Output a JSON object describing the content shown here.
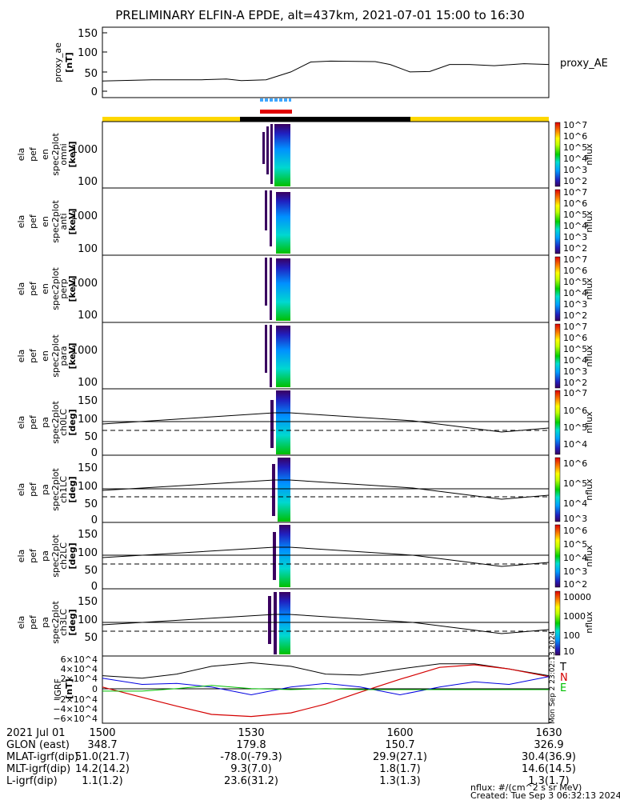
{
  "title": "PRELIMINARY ELFIN-A EPDE, alt=437km, 2021-07-01 15:00 to 16:30",
  "proxy_ae": {
    "ylabel_lines": [
      "proxy_ae",
      "[nT]"
    ],
    "yticks": [
      "150",
      "100",
      "50",
      "0"
    ],
    "legend": "proxy_AE"
  },
  "spectrogram_panels": [
    {
      "ylabel_lines": [
        "ela",
        "pef",
        "en",
        "spec2plot",
        "omni",
        "[keV]"
      ],
      "yticks": [
        "1000",
        "100"
      ],
      "cbar_ticks": [
        "10^7",
        "10^6",
        "10^5",
        "10^4",
        "10^3",
        "10^2"
      ],
      "cbar_label": "nflux"
    },
    {
      "ylabel_lines": [
        "ela",
        "pef",
        "en",
        "spec2plot",
        "anti",
        "[keV]"
      ],
      "yticks": [
        "1000",
        "100"
      ],
      "cbar_ticks": [
        "10^7",
        "10^6",
        "10^5",
        "10^4",
        "10^3",
        "10^2"
      ],
      "cbar_label": "nflux"
    },
    {
      "ylabel_lines": [
        "ela",
        "pef",
        "en",
        "spec2plot",
        "perp",
        "[keV]"
      ],
      "yticks": [
        "1000",
        "100"
      ],
      "cbar_ticks": [
        "10^7",
        "10^6",
        "10^5",
        "10^4",
        "10^3",
        "10^2"
      ],
      "cbar_label": "nflux"
    },
    {
      "ylabel_lines": [
        "ela",
        "pef",
        "en",
        "spec2plot",
        "para",
        "[keV]"
      ],
      "yticks": [
        "1000",
        "100"
      ],
      "cbar_ticks": [
        "10^7",
        "10^6",
        "10^5",
        "10^4",
        "10^3",
        "10^2"
      ],
      "cbar_label": "nflux"
    }
  ],
  "pitch_panels": [
    {
      "ylabel_lines": [
        "ela",
        "pef",
        "pa",
        "spec2plot",
        "ch0LC",
        "[deg]"
      ],
      "yticks": [
        "150",
        "100",
        "50",
        "0"
      ],
      "cbar_ticks": [
        "10^7",
        "10^6",
        "10^5",
        "10^4"
      ],
      "cbar_label": "nflux"
    },
    {
      "ylabel_lines": [
        "ela",
        "pef",
        "pa",
        "spec2plot",
        "ch1LC",
        "[deg]"
      ],
      "yticks": [
        "150",
        "100",
        "50",
        "0"
      ],
      "cbar_ticks": [
        "10^6",
        "10^5",
        "10^4",
        "10^3"
      ],
      "cbar_label": "nflux"
    },
    {
      "ylabel_lines": [
        "ela",
        "pef",
        "pa",
        "spec2plot",
        "ch2LC",
        "[deg]"
      ],
      "yticks": [
        "150",
        "100",
        "50",
        "0"
      ],
      "cbar_ticks": [
        "10^6",
        "10^5",
        "10^4",
        "10^3",
        "10^2"
      ],
      "cbar_label": "nflux"
    },
    {
      "ylabel_lines": [
        "ela",
        "pef",
        "pa",
        "spec2plot",
        "ch3LC",
        "[deg]"
      ],
      "yticks": [
        "150",
        "100",
        "50"
      ],
      "cbar_ticks": [
        "10000",
        "1000",
        "100",
        "10"
      ],
      "cbar_label": "nflux"
    }
  ],
  "igrf": {
    "ylabel_lines": [
      "IGRF",
      "[nT]"
    ],
    "yticks": [
      "6×10^4",
      "4×10^4",
      "2×10^4",
      "0",
      "−2×10^4",
      "−4×10^4",
      "−6×10^4"
    ],
    "components": [
      {
        "label": "T",
        "color": "#000000"
      },
      {
        "label": "N",
        "color": "#d40000"
      },
      {
        "label": "E",
        "color": "#00c000"
      }
    ],
    "side_note": "Mon Sep  2 23:02:13 2024"
  },
  "colors": {
    "sunlit": "#ffd700",
    "shadow": "#000000",
    "fgm_bar": "#3ea6ff",
    "epd_bar": "#e00000",
    "green": "#00c000",
    "blue": "#0000e0",
    "red": "#d40000"
  },
  "footer": {
    "rows": [
      {
        "label": "2021 Jul 01",
        "values": [
          "1500",
          "1530",
          "1600",
          "1630"
        ]
      },
      {
        "label": "GLON (east)",
        "values": [
          "348.7",
          "179.8",
          "150.7",
          "326.9"
        ]
      },
      {
        "label": "MLAT-igrf(dip)",
        "values": [
          "51.0(21.7)",
          "-78.0(-79.3)",
          "29.9(27.1)",
          "30.4(36.9)"
        ]
      },
      {
        "label": "MLT-igrf(dip)",
        "values": [
          "14.2(14.2)",
          "9.3(7.0)",
          "1.8(1.7)",
          "14.6(14.5)"
        ]
      },
      {
        "label": "L-igrf(dip)",
        "values": [
          "1.1(1.2)",
          "23.6(31.2)",
          "1.3(1.3)",
          "1.3(1.7)"
        ]
      }
    ],
    "units_note": "nflux: #/(cm^2 s sr MeV)",
    "created": "Created: Tue Sep  3 06:32:13 2024"
  },
  "chart_data": [
    {
      "type": "line",
      "title": "PRELIMINARY ELFIN-A EPDE, alt=437km, 2021-07-01 15:00 to 16:30",
      "ylabel": "proxy_ae [nT]",
      "ylim": [
        -10,
        160
      ],
      "series": [
        {
          "name": "proxy_AE",
          "x": [
            "15:00",
            "15:10",
            "15:20",
            "15:25",
            "15:28",
            "15:33",
            "15:38",
            "15:42",
            "15:46",
            "15:55",
            "15:58",
            "16:02",
            "16:06",
            "16:10",
            "16:14",
            "16:19",
            "16:25",
            "16:30"
          ],
          "values": [
            30,
            33,
            33,
            35,
            31,
            33,
            52,
            76,
            78,
            77,
            70,
            52,
            53,
            70,
            70,
            67,
            72,
            70
          ]
        }
      ]
    },
    {
      "type": "heatmap",
      "ylabel": "ela pef en spec2plot omni [keV]",
      "y_scale": "log",
      "ylim": [
        60,
        6000
      ],
      "active_interval": [
        "15:29",
        "15:35"
      ],
      "colorbar": {
        "range": [
          100,
          10000000
        ],
        "scale": "log",
        "label": "nflux"
      }
    },
    {
      "type": "heatmap",
      "ylabel": "ela pef en spec2plot anti [keV]",
      "y_scale": "log",
      "ylim": [
        60,
        6000
      ],
      "active_interval": [
        "15:29",
        "15:35"
      ],
      "colorbar": {
        "range": [
          100,
          10000000
        ],
        "scale": "log",
        "label": "nflux"
      }
    },
    {
      "type": "heatmap",
      "ylabel": "ela pef en spec2plot perp [keV]",
      "y_scale": "log",
      "ylim": [
        60,
        6000
      ],
      "active_interval": [
        "15:29",
        "15:35"
      ],
      "colorbar": {
        "range": [
          100,
          10000000
        ],
        "scale": "log",
        "label": "nflux"
      }
    },
    {
      "type": "heatmap",
      "ylabel": "ela pef en spec2plot para [keV]",
      "y_scale": "log",
      "ylim": [
        60,
        6000
      ],
      "active_interval": [
        "15:29",
        "15:35"
      ],
      "colorbar": {
        "range": [
          100,
          10000000
        ],
        "scale": "log",
        "label": "nflux"
      }
    },
    {
      "type": "heatmap",
      "ylabel": "ela pef pa spec2plot ch0LC [deg]",
      "ylim": [
        0,
        180
      ],
      "reference_lines": {
        "x": [
          "15:00",
          "15:30",
          "15:35",
          "16:00",
          "16:25",
          "16:30"
        ],
        "solid": [
          88,
          114,
          114,
          92,
          65,
          72
        ],
        "dashed": [
          66,
          66,
          66,
          66,
          66,
          66
        ]
      },
      "colorbar": {
        "range": [
          10000,
          10000000
        ],
        "scale": "log",
        "label": "nflux"
      }
    },
    {
      "type": "heatmap",
      "ylabel": "ela pef pa spec2plot ch1LC [deg]",
      "ylim": [
        0,
        180
      ],
      "colorbar": {
        "range": [
          1000,
          1000000
        ],
        "scale": "log",
        "label": "nflux"
      }
    },
    {
      "type": "heatmap",
      "ylabel": "ela pef pa spec2plot ch2LC [deg]",
      "ylim": [
        0,
        180
      ],
      "colorbar": {
        "range": [
          100,
          1000000
        ],
        "scale": "log",
        "label": "nflux"
      }
    },
    {
      "type": "heatmap",
      "ylabel": "ela pef pa spec2plot ch3LC [deg]",
      "ylim": [
        30,
        180
      ],
      "colorbar": {
        "range": [
          10,
          10000
        ],
        "scale": "log",
        "label": "nflux"
      }
    },
    {
      "type": "line",
      "ylabel": "IGRF [nT]",
      "ylim": [
        -65000,
        65000
      ],
      "x": [
        "15:00",
        "15:08",
        "15:15",
        "15:22",
        "15:30",
        "15:38",
        "15:45",
        "15:52",
        "16:00",
        "16:08",
        "16:15",
        "16:22",
        "16:30"
      ],
      "series": [
        {
          "name": "T",
          "values": [
            27000,
            22000,
            30000,
            45000,
            52000,
            45000,
            30000,
            28000,
            40000,
            50000,
            50000,
            40000,
            27000
          ]
        },
        {
          "name": "N",
          "values": [
            5000,
            -15000,
            -32000,
            -48000,
            -52000,
            -45000,
            -28000,
            -5000,
            20000,
            43000,
            48000,
            40000,
            25000
          ]
        },
        {
          "name": "E",
          "values": [
            22000,
            10000,
            12000,
            5000,
            -10000,
            5000,
            12000,
            5000,
            -10000,
            5000,
            15000,
            10000,
            25000
          ]
        },
        {
          "name": "green",
          "values": [
            -3000,
            -3000,
            2000,
            8000,
            2000,
            0,
            2000,
            0,
            0,
            0,
            0,
            0,
            0
          ]
        }
      ]
    }
  ]
}
